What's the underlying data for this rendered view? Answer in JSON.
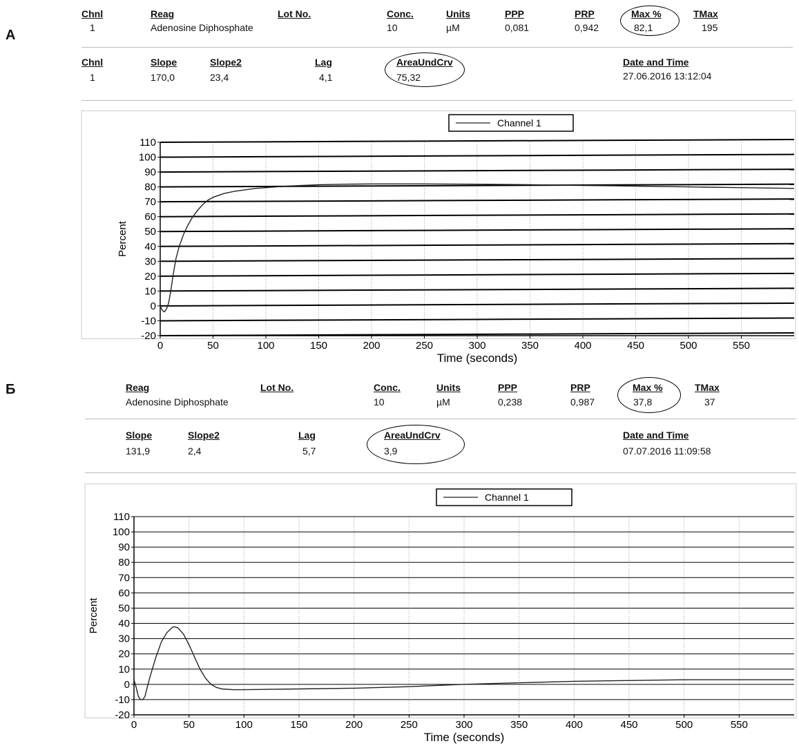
{
  "panels": [
    {
      "letter": "А",
      "row1": {
        "chnl": {
          "label": "Chnl",
          "value": "1"
        },
        "reag": {
          "label": "Reag",
          "value": "Adenosine Diphosphate"
        },
        "lot": {
          "label": "Lot No.",
          "value": ""
        },
        "conc": {
          "label": "Conc.",
          "value": "10"
        },
        "units": {
          "label": "Units",
          "value": "µM"
        },
        "ppp": {
          "label": "PPP",
          "value": "0,081"
        },
        "prp": {
          "label": "PRP",
          "value": "0,942"
        },
        "max": {
          "label": "Max %",
          "value": "82,1"
        },
        "tmax": {
          "label": "TMax",
          "value": "195"
        }
      },
      "row2": {
        "chnl": {
          "label": "Chnl",
          "value": "1"
        },
        "slope": {
          "label": "Slope",
          "value": "170,0"
        },
        "slope2": {
          "label": "Slope2",
          "value": "23,4"
        },
        "lag": {
          "label": "Lag",
          "value": "4,1"
        },
        "auc": {
          "label": "AreaUndCrv",
          "value": "75,32"
        },
        "dt": {
          "label": "Date and Time",
          "value": "27.06.2016 13:12:04"
        }
      }
    },
    {
      "letter": "Б",
      "row1": {
        "reag": {
          "label": "Reag",
          "value": "Adenosine Diphosphate"
        },
        "lot": {
          "label": "Lot No.",
          "value": ""
        },
        "conc": {
          "label": "Conc.",
          "value": "10"
        },
        "units": {
          "label": "Units",
          "value": "µM"
        },
        "ppp": {
          "label": "PPP",
          "value": "0,238"
        },
        "prp": {
          "label": "PRP",
          "value": "0,987"
        },
        "max": {
          "label": "Max %",
          "value": "37,8"
        },
        "tmax": {
          "label": "TMax",
          "value": "37"
        }
      },
      "row2": {
        "slope": {
          "label": "Slope",
          "value": "131,9"
        },
        "slope2": {
          "label": "Slope2",
          "value": "2,4"
        },
        "lag": {
          "label": "Lag",
          "value": "5,7"
        },
        "auc": {
          "label": "AreaUndCrv",
          "value": "3,9"
        },
        "dt": {
          "label": "Date and Time",
          "value": "07.07.2016 11:09:58"
        }
      }
    }
  ],
  "chart_data": [
    {
      "type": "line",
      "xlabel": "Time (seconds)",
      "ylabel": "Percent",
      "xlim": [
        0,
        600
      ],
      "ylim": [
        -20,
        110
      ],
      "x_ticks": [
        0,
        50,
        100,
        150,
        200,
        250,
        300,
        350,
        400,
        450,
        500,
        550
      ],
      "y_ticks": [
        110,
        100,
        90,
        80,
        70,
        60,
        50,
        40,
        30,
        20,
        10,
        0,
        -10,
        -20
      ],
      "grid": true,
      "legend": "top-center",
      "series": [
        {
          "name": "Channel 1",
          "color": "#222222",
          "x": [
            0,
            2,
            4,
            6,
            8,
            10,
            12,
            15,
            18,
            22,
            26,
            30,
            35,
            40,
            45,
            50,
            60,
            70,
            80,
            90,
            100,
            110,
            120,
            135,
            150,
            175,
            200,
            250,
            300,
            350,
            400,
            450,
            500,
            550,
            600
          ],
          "y": [
            0,
            -3,
            -4,
            -2,
            2,
            10,
            20,
            32,
            40,
            48,
            54,
            59,
            64,
            68,
            71,
            73,
            75.5,
            77,
            78,
            79,
            79.5,
            80,
            80.5,
            81,
            81.5,
            81.8,
            82,
            82,
            81.8,
            81.5,
            81,
            80.5,
            80,
            79.5,
            79
          ]
        }
      ]
    },
    {
      "type": "line",
      "xlabel": "Time (seconds)",
      "ylabel": "Percent",
      "xlim": [
        0,
        600
      ],
      "ylim": [
        -20,
        110
      ],
      "x_ticks": [
        0,
        50,
        100,
        150,
        200,
        250,
        300,
        350,
        400,
        450,
        500,
        550
      ],
      "y_ticks": [
        110,
        100,
        90,
        80,
        70,
        60,
        50,
        40,
        30,
        20,
        10,
        0,
        -10,
        -20
      ],
      "grid": true,
      "legend": "top-center",
      "series": [
        {
          "name": "Channel 1",
          "color": "#222222",
          "x": [
            0,
            2,
            4,
            6,
            8,
            10,
            12,
            15,
            20,
            25,
            30,
            35,
            37,
            40,
            45,
            50,
            55,
            60,
            65,
            70,
            75,
            80,
            90,
            100,
            120,
            150,
            200,
            250,
            300,
            350,
            400,
            450,
            500,
            550,
            600
          ],
          "y": [
            3,
            -2,
            -8,
            -10,
            -10,
            -8,
            -2,
            6,
            18,
            28,
            34,
            37.5,
            37.8,
            37,
            33,
            26,
            18,
            10,
            4,
            0,
            -2,
            -3,
            -3.5,
            -3.5,
            -3.3,
            -3,
            -2.5,
            -1.5,
            0,
            1,
            2,
            2.5,
            3,
            3,
            3
          ]
        }
      ]
    }
  ]
}
